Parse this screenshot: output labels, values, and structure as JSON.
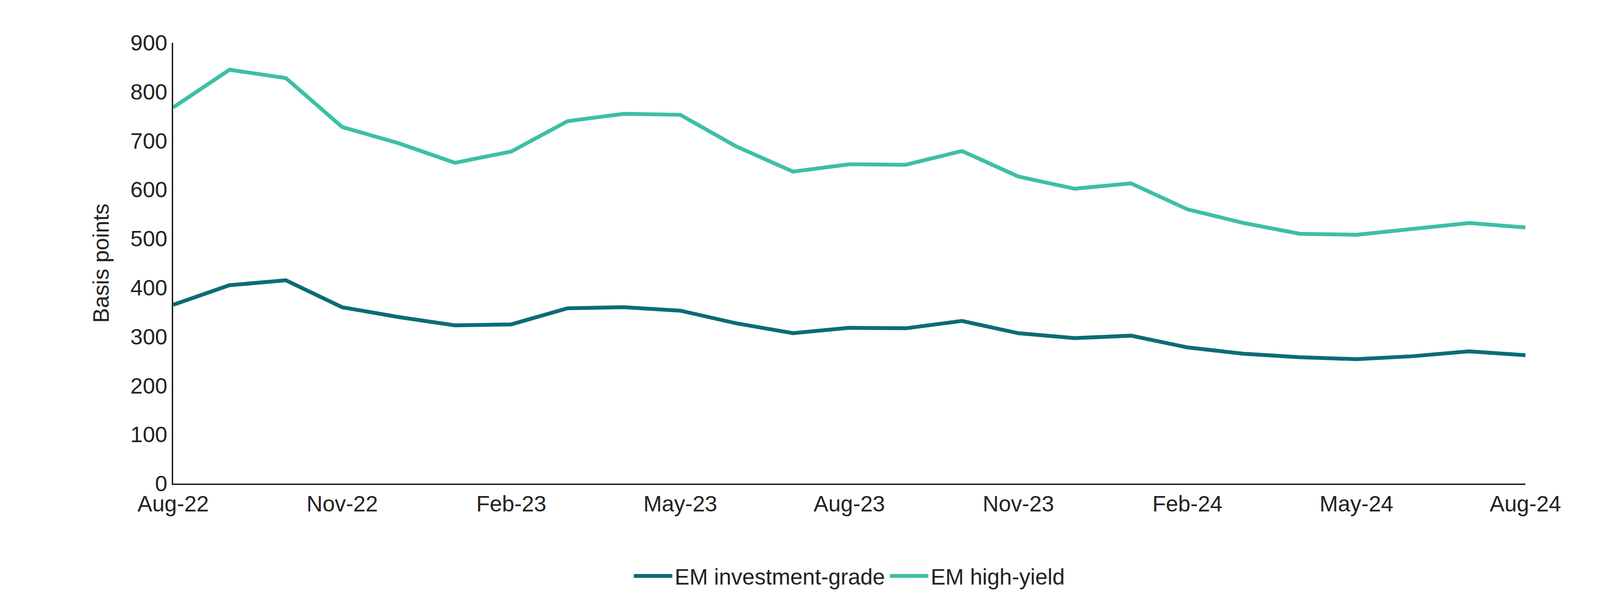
{
  "chart_data": {
    "type": "line",
    "y_label": "Basis points",
    "categories": [
      "Aug-22",
      null,
      null,
      "Nov-22",
      null,
      null,
      "Feb-23",
      null,
      null,
      "May-23",
      null,
      null,
      "Aug-23",
      null,
      null,
      "Nov-23",
      null,
      null,
      "Feb-24",
      null,
      null,
      "May-24",
      null,
      null,
      "Aug-24"
    ],
    "series": [
      {
        "name": "EM investment-grade",
        "color": "#0d6b78",
        "values": [
          365,
          405,
          415,
          360,
          340,
          323,
          325,
          358,
          360,
          353,
          327,
          307,
          318,
          317,
          332,
          307,
          297,
          302,
          278,
          265,
          258,
          254,
          260,
          270,
          262
        ]
      },
      {
        "name": "EM high-yield",
        "color": "#3dbfa5",
        "values": [
          768,
          845,
          828,
          728,
          695,
          655,
          678,
          740,
          755,
          753,
          688,
          637,
          652,
          651,
          679,
          627,
          602,
          613,
          560,
          532,
          510,
          508,
          520,
          532,
          523
        ]
      }
    ],
    "ylim": [
      0,
      900
    ],
    "yticks": [
      0,
      100,
      200,
      300,
      400,
      500,
      600,
      700,
      800,
      900
    ],
    "grid": false,
    "legend": "bottom"
  }
}
